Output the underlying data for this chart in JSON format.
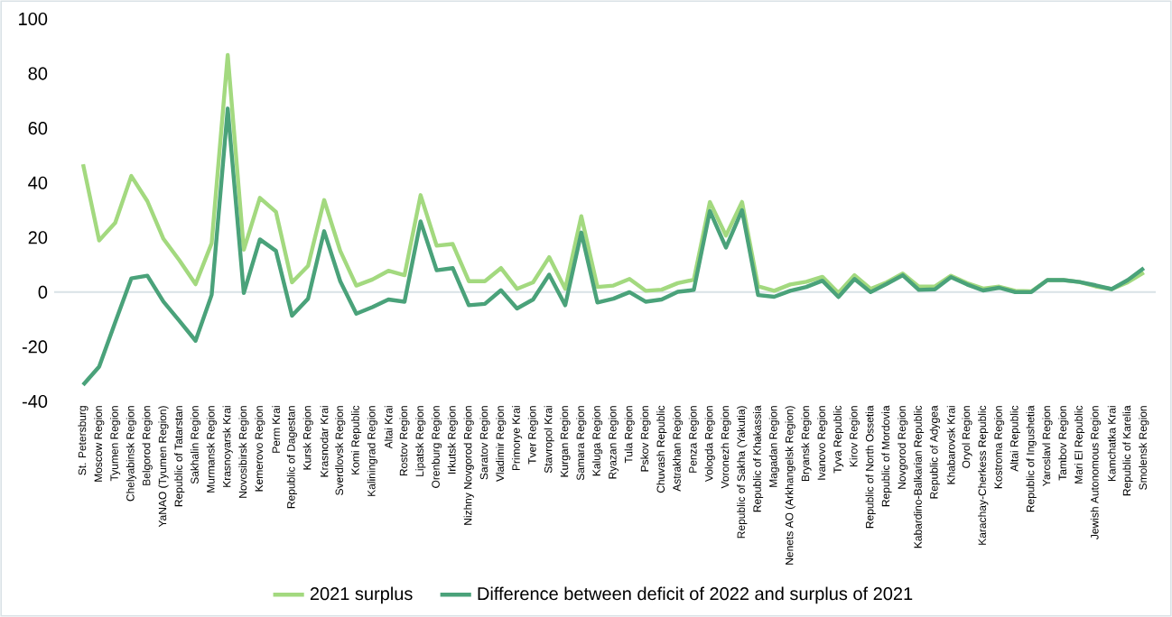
{
  "chart_data": {
    "type": "line",
    "categories": [
      "St. Petersburg",
      "Moscow Region",
      "Tyumen Region",
      "Chelyabinsk Region",
      "Belgorod Region",
      "YaNAO (Tyumen Region)",
      "Republic of Tatarstan",
      "Sakhalin Region",
      "Murmansk Region",
      "Krasnoyarsk Krai",
      "Novosibirsk Region",
      "Kemerovo Region",
      "Perm Krai",
      "Republic of Dagestan",
      "Kursk Region",
      "Krasnodar Krai",
      "Sverdlovsk Region",
      "Komi Republic",
      "Kaliningrad Region",
      "Altai Krai",
      "Rostov Region",
      "Lipatsk Region",
      "Orenburg Region",
      "Irkutsk Region",
      "Nizhny Novgorod Region",
      "Saratov Region",
      "Vladimir Region",
      "Primorye Krai",
      "Tver Region",
      "Stavropol Krai",
      "Kurgan Region",
      "Samara Region",
      "Kaluga Region",
      "Ryazan Region",
      "Tula Region",
      "Pskov Region",
      "Chuvash Republic",
      "Astrakhan Region",
      "Penza Region",
      "Vologda Region",
      "Voronezh Region",
      "Republic of Sakha (Yakutia)",
      "Republic of Khakassia",
      "Magadan Region",
      "Nenets AO (Arkhangelsk Region)",
      "Bryansk Region",
      "Ivanovo Region",
      "Tyva Republic",
      "Kirov Region",
      "Republic of North Ossetia",
      "Republic of Mordovia",
      "Novgorod Region",
      "Kabardino-Balkarian Republic",
      "Republic of Adygea",
      "Khabarovsk Krai",
      "Oryol Region",
      "Karachay-Cherkess Republic",
      "Kostroma Region",
      "Altai Republic",
      "Republic of Ingushetia",
      "Yaroslavl Region",
      "Tambov Region",
      "Mari El Republic",
      "Jewish Autonomous Region",
      "Kamchatka Krai",
      "Republic of Karelia",
      "Smolensk Region"
    ],
    "series": [
      {
        "name": "2021 surplus",
        "color": "#a3d97f",
        "values": [
          46.8,
          18.9,
          25.4,
          42.5,
          33.3,
          19.5,
          11.6,
          2.9,
          17.9,
          86.8,
          15.5,
          34.5,
          29.4,
          3.6,
          9.6,
          33.7,
          15.1,
          2.4,
          4.6,
          7.8,
          6.2,
          35.5,
          17,
          17.6,
          4,
          4,
          8.8,
          1.2,
          3.6,
          12.8,
          1.2,
          27.8,
          1.9,
          2.4,
          4.8,
          0.5,
          0.9,
          3.3,
          4.5,
          33,
          20.7,
          33,
          2.1,
          0.5,
          2.8,
          3.8,
          5.6,
          -0.3,
          6.2,
          1.2,
          3.6,
          6.8,
          2,
          2.1,
          6,
          3.3,
          1.3,
          2,
          0.5,
          0.3,
          4.4,
          4.4,
          3.7,
          2.1,
          1.1,
          3.6,
          7.2
        ]
      },
      {
        "name": "Difference between deficit of 2022 and surplus of 2021",
        "color": "#4aa27a",
        "values": [
          -34,
          -27.3,
          -11,
          5,
          6,
          -3.5,
          -10.6,
          -17.8,
          -1,
          67.2,
          -0.3,
          19.3,
          15.1,
          -8.6,
          -2.4,
          22.3,
          4,
          -7.9,
          -5.5,
          -2.7,
          -3.5,
          25.9,
          8,
          8.8,
          -4.8,
          -4.3,
          0.7,
          -6,
          -2.7,
          6.4,
          -4.8,
          21.8,
          -3.8,
          -2.4,
          0,
          -3.5,
          -2.7,
          0.1,
          0.8,
          29.7,
          16.3,
          30,
          -1.1,
          -1.7,
          0.5,
          1.9,
          4.2,
          -1.8,
          4.8,
          0,
          3,
          6.2,
          0.8,
          1,
          5.5,
          2.8,
          0.6,
          1.6,
          0,
          0,
          4.4,
          4.4,
          3.7,
          2.5,
          1.1,
          4.4,
          8.8
        ]
      }
    ],
    "ylim": [
      -40,
      100
    ],
    "yticks": [
      -40,
      -20,
      0,
      20,
      40,
      60,
      80,
      100
    ],
    "legend": "bottom",
    "marker": "none",
    "line_style": "solid"
  }
}
